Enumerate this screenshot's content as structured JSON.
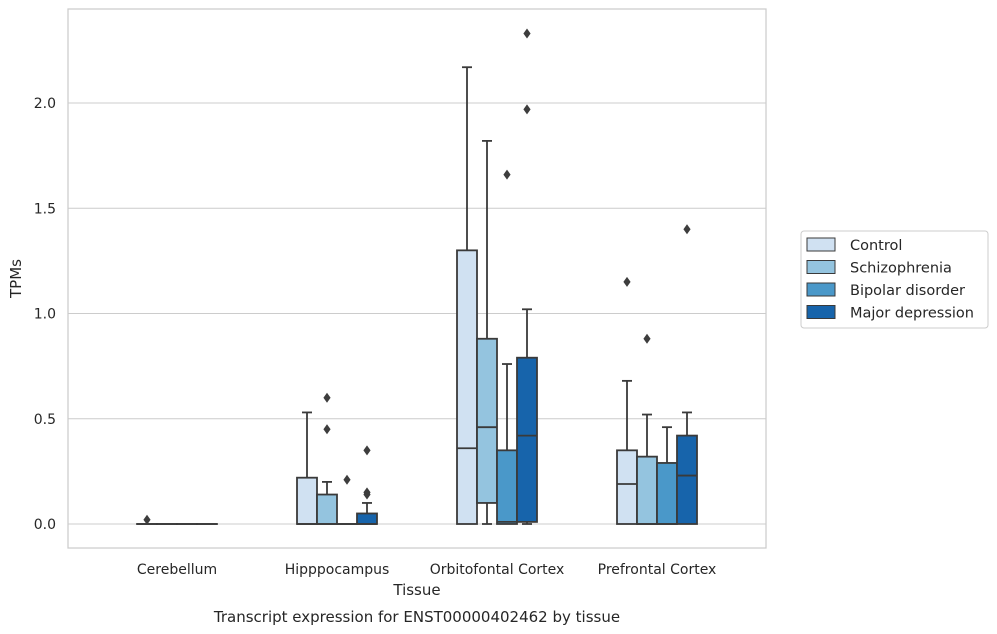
{
  "chart_data": {
    "type": "box",
    "title": "",
    "caption": "Transcript expression for ENST00000402462 by tissue",
    "xlabel": "Tissue",
    "ylabel": "TPMs",
    "ylim": [
      -0.11,
      2.45
    ],
    "yticks": [
      0.0,
      0.5,
      1.0,
      1.5,
      2.0
    ],
    "ytick_labels": [
      "0.0",
      "0.5",
      "1.0",
      "1.5",
      "2.0"
    ],
    "grid": "horizontal",
    "legend_position": "right",
    "categories": [
      "Cerebellum",
      "Hipppocampus",
      "Orbitofontal Cortex",
      "Prefrontal Cortex"
    ],
    "series": [
      {
        "name": "Control",
        "color": "#d0e1f2",
        "boxes": [
          {
            "whislo": 0,
            "q1": 0,
            "med": 0,
            "q3": 0,
            "whishi": 0,
            "fliers": [
              0.02
            ]
          },
          {
            "whislo": 0,
            "q1": 0,
            "med": 0,
            "q3": 0.22,
            "whishi": 0.53,
            "fliers": []
          },
          {
            "whislo": 0,
            "q1": 0,
            "med": 0.36,
            "q3": 1.3,
            "whishi": 2.17,
            "fliers": []
          },
          {
            "whislo": 0,
            "q1": 0,
            "med": 0.19,
            "q3": 0.35,
            "whishi": 0.68,
            "fliers": [
              1.15
            ]
          }
        ]
      },
      {
        "name": "Schizophrenia",
        "color": "#94c4df",
        "boxes": [
          {
            "whislo": 0,
            "q1": 0,
            "med": 0,
            "q3": 0,
            "whishi": 0,
            "fliers": []
          },
          {
            "whislo": 0,
            "q1": 0,
            "med": 0,
            "q3": 0.14,
            "whishi": 0.2,
            "fliers": [
              0.6,
              0.45
            ]
          },
          {
            "whislo": 0,
            "q1": 0.1,
            "med": 0.46,
            "q3": 0.88,
            "whishi": 1.82,
            "fliers": []
          },
          {
            "whislo": 0,
            "q1": 0,
            "med": 0,
            "q3": 0.32,
            "whishi": 0.52,
            "fliers": [
              0.88
            ]
          }
        ]
      },
      {
        "name": "Bipolar disorder",
        "color": "#4a98c9",
        "boxes": [
          {
            "whislo": 0,
            "q1": 0,
            "med": 0,
            "q3": 0,
            "whishi": 0,
            "fliers": []
          },
          {
            "whislo": 0,
            "q1": 0,
            "med": 0,
            "q3": 0,
            "whishi": 0,
            "fliers": [
              0.21
            ]
          },
          {
            "whislo": 0,
            "q1": 0,
            "med": 0.01,
            "q3": 0.35,
            "whishi": 0.76,
            "fliers": [
              1.66
            ]
          },
          {
            "whislo": 0,
            "q1": 0,
            "med": 0,
            "q3": 0.29,
            "whishi": 0.46,
            "fliers": []
          }
        ]
      },
      {
        "name": "Major depression",
        "color": "#1764ab",
        "boxes": [
          {
            "whislo": 0,
            "q1": 0,
            "med": 0,
            "q3": 0,
            "whishi": 0,
            "fliers": []
          },
          {
            "whislo": 0,
            "q1": 0,
            "med": 0,
            "q3": 0.05,
            "whishi": 0.1,
            "fliers": [
              0.35,
              0.15,
              0.14
            ]
          },
          {
            "whislo": 0,
            "q1": 0.01,
            "med": 0.42,
            "q3": 0.79,
            "whishi": 1.02,
            "fliers": [
              2.33,
              1.97
            ]
          },
          {
            "whislo": 0,
            "q1": 0,
            "med": 0.23,
            "q3": 0.42,
            "whishi": 0.53,
            "fliers": [
              1.4
            ]
          }
        ]
      }
    ]
  }
}
